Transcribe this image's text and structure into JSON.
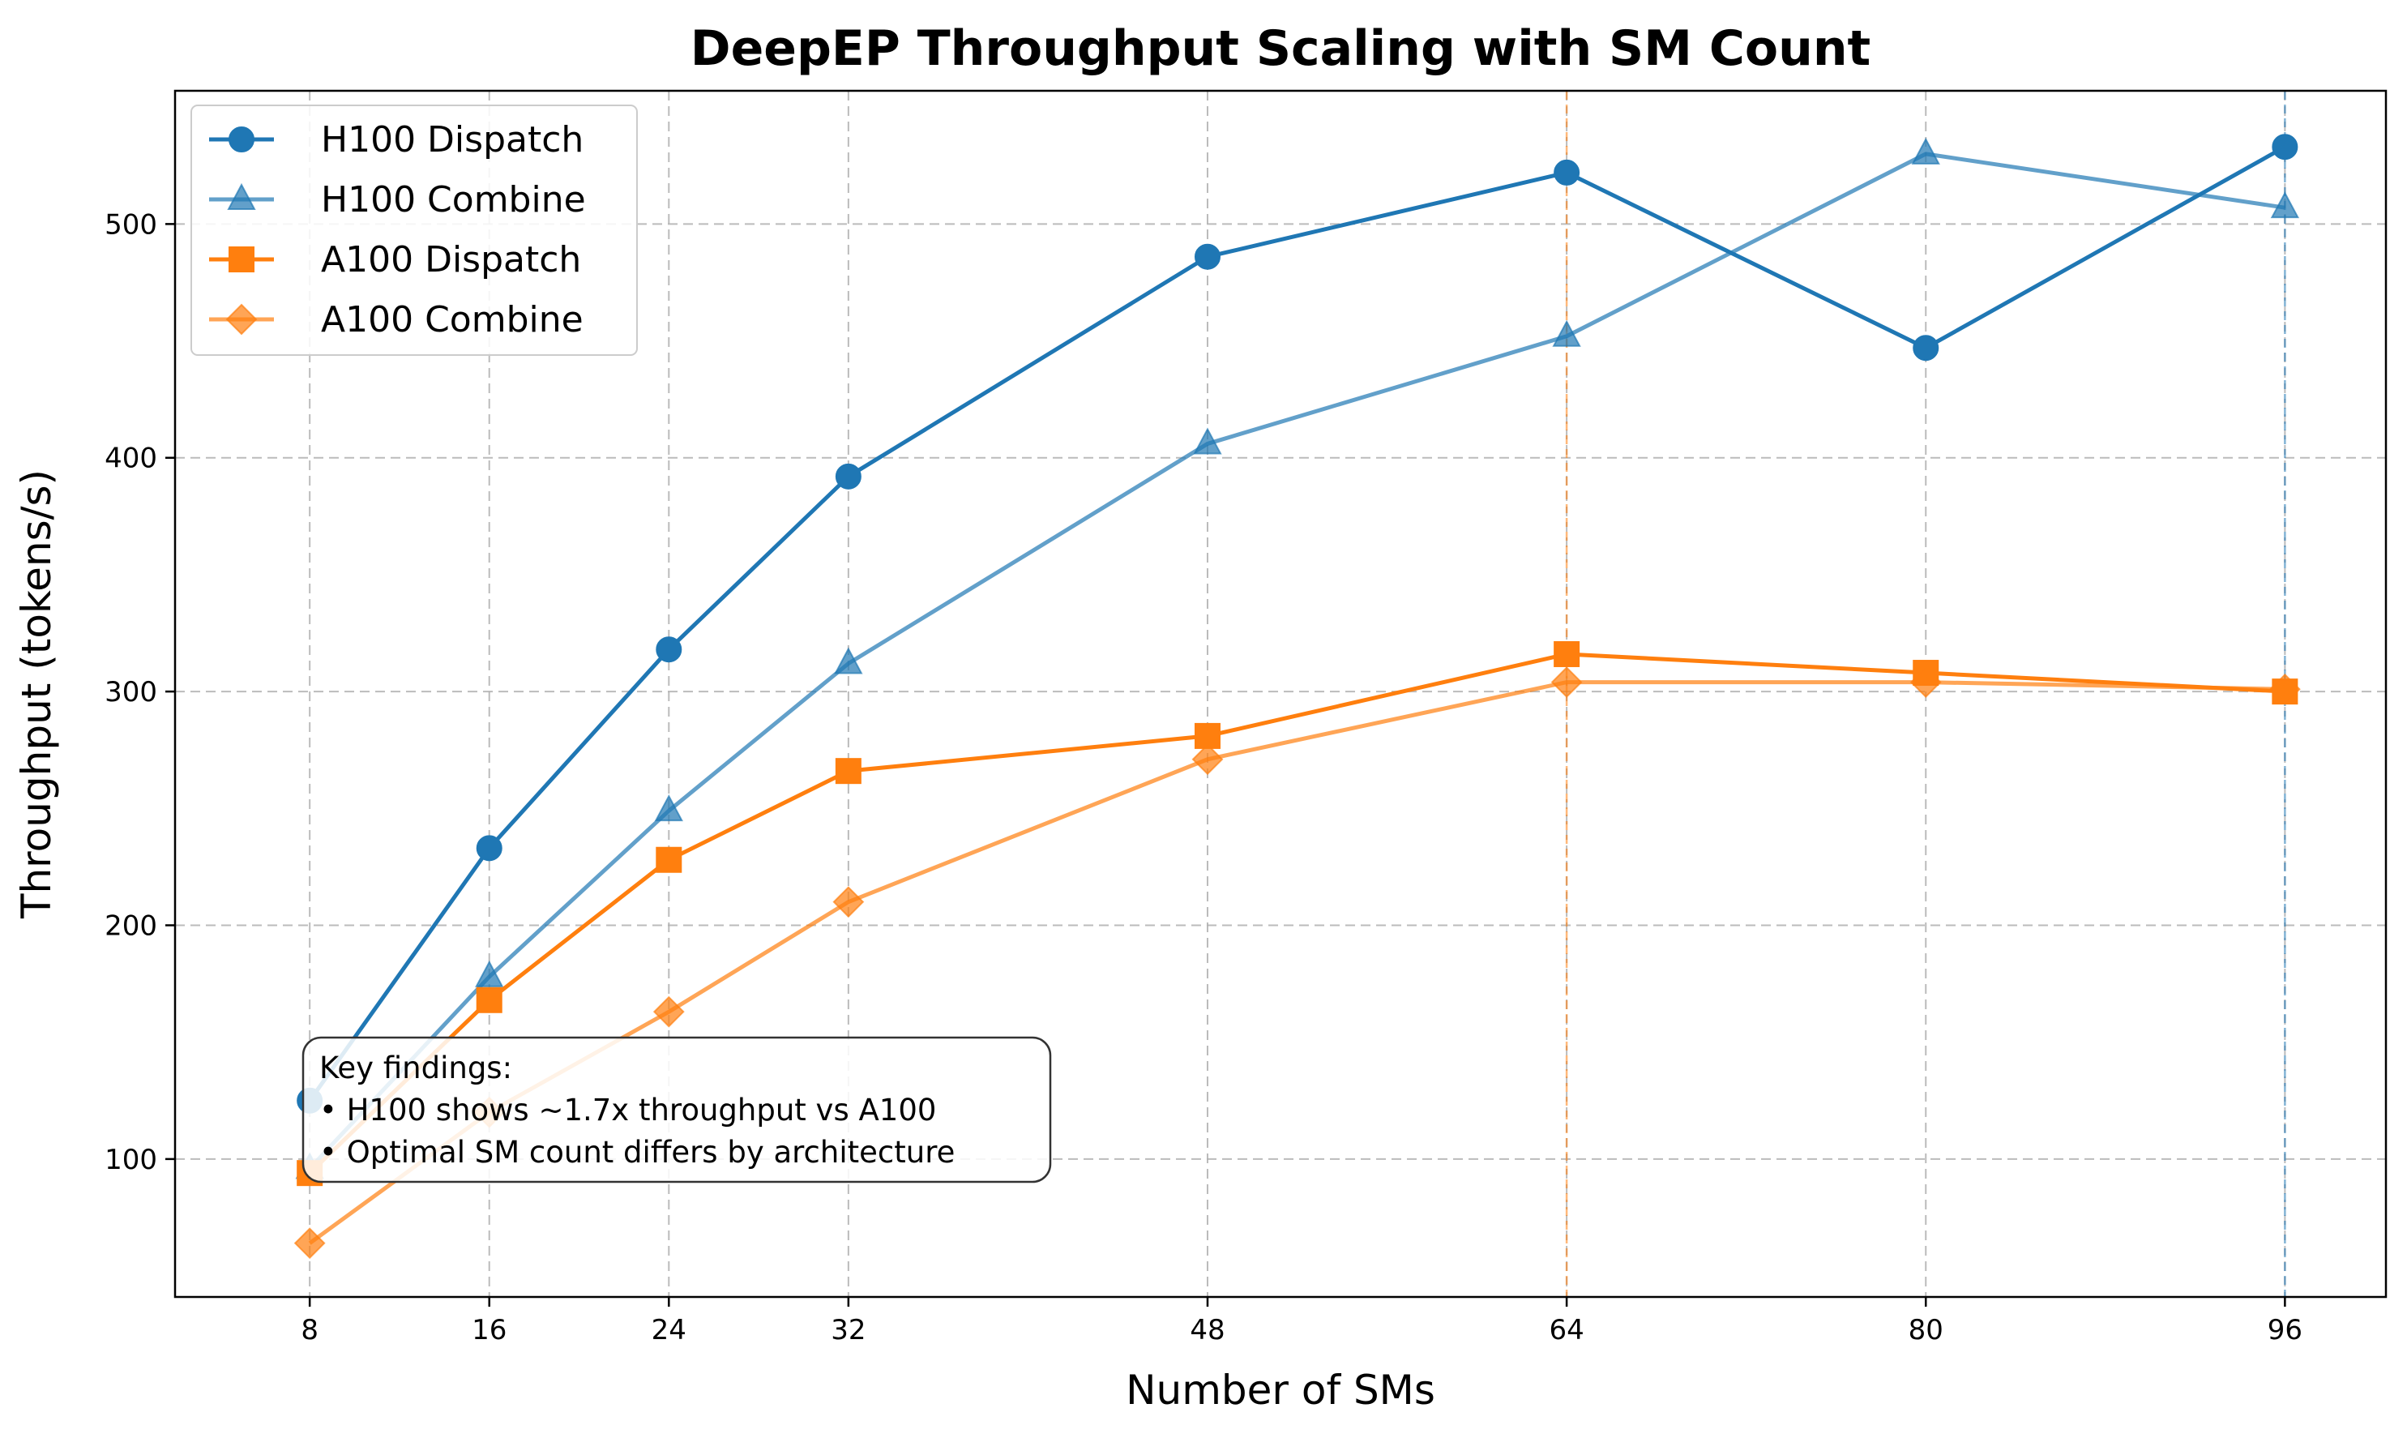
{
  "chart_data": {
    "type": "line",
    "title": "DeepEP Throughput Scaling with SM Count",
    "xlabel": "Number of SMs",
    "ylabel": "Throughput (tokens/s)",
    "x": [
      8,
      16,
      24,
      32,
      48,
      64,
      80,
      96
    ],
    "x_ticks": [
      "8",
      "16",
      "24",
      "32",
      "48",
      "64",
      "80",
      "96"
    ],
    "y_ticks": [
      100,
      200,
      300,
      400,
      500
    ],
    "xlim": [
      2,
      100.5
    ],
    "ylim": [
      41,
      557
    ],
    "grid": true,
    "legend_position": "top-left",
    "series": [
      {
        "name": "H100 Dispatch",
        "values": [
          125,
          233,
          318,
          392,
          486,
          522,
          447,
          533
        ],
        "color": "#1f77b4",
        "marker": "circle",
        "opacity": 1.0
      },
      {
        "name": "H100 Combine",
        "values": [
          96,
          178,
          249,
          312,
          406,
          452,
          530,
          507
        ],
        "color": "#1f77b4",
        "marker": "triangle",
        "opacity": 0.7
      },
      {
        "name": "A100 Dispatch",
        "values": [
          94,
          168,
          228,
          266,
          281,
          316,
          308,
          300
        ],
        "color": "#ff7f0e",
        "marker": "square",
        "opacity": 1.0
      },
      {
        "name": "A100 Combine",
        "values": [
          64,
          120,
          163,
          210,
          271,
          304,
          304,
          301
        ],
        "color": "#ff7f0e",
        "marker": "diamond",
        "opacity": 0.7
      }
    ],
    "vertical_markers": [
      {
        "x": 64,
        "color": "#ff7f0e"
      },
      {
        "x": 96,
        "color": "#1f77b4"
      }
    ],
    "annotation": {
      "lines": [
        "Key findings:",
        "• H100 shows ~1.7x throughput vs A100",
        "• Optimal SM count differs by architecture"
      ]
    }
  }
}
